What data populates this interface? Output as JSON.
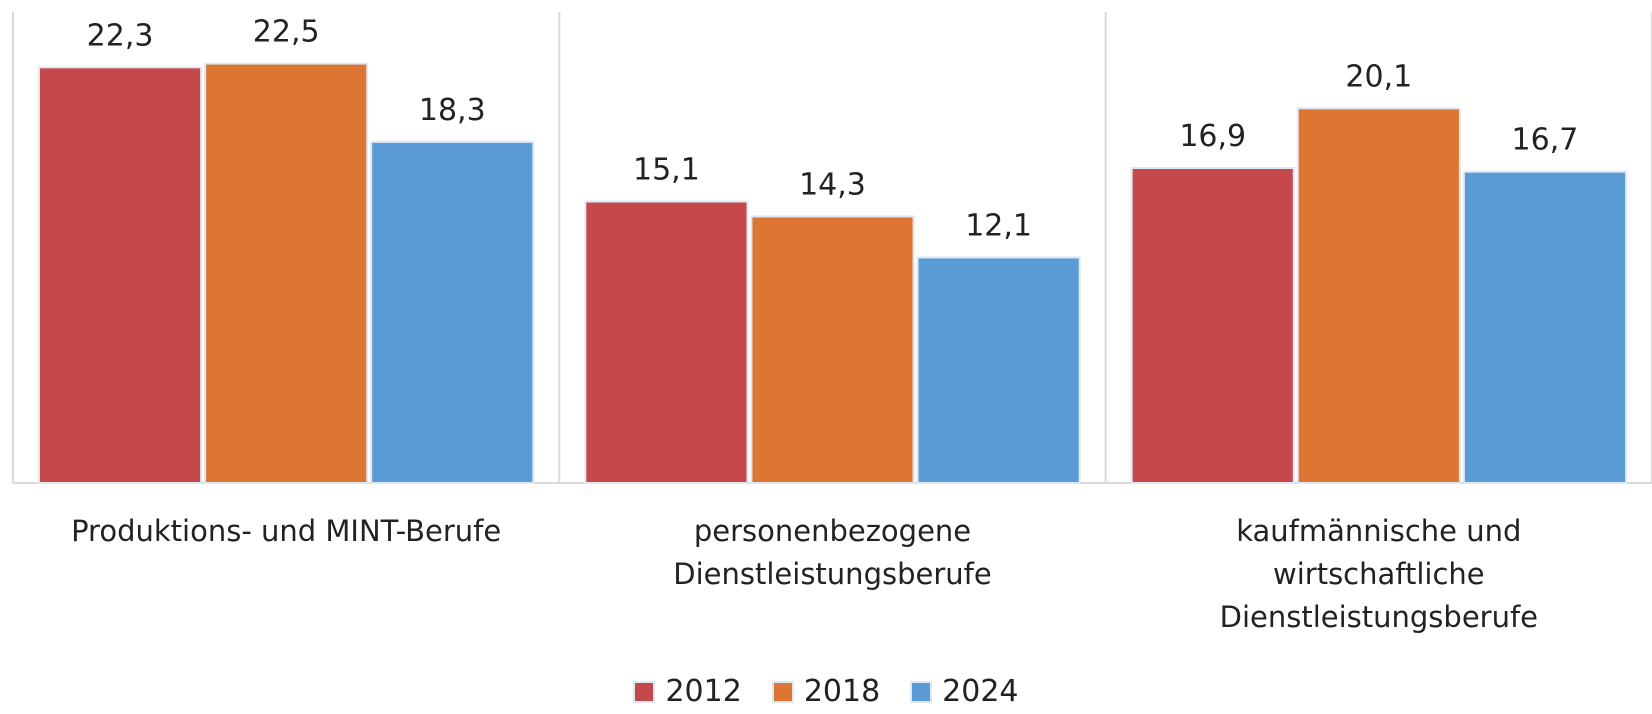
{
  "chart_data": {
    "type": "bar",
    "categories": [
      "Produktions- und MINT-Berufe",
      "personenbezogene Dienstleistungsberufe",
      "kaufmännische und wirtschaftliche Dienstleistungsberufe"
    ],
    "series": [
      {
        "name": "2012",
        "color": "#c5484a",
        "values": [
          22.3,
          15.1,
          16.9
        ],
        "value_labels": [
          "22,3",
          "15,1",
          "16,9"
        ]
      },
      {
        "name": "2018",
        "color": "#de7633",
        "values": [
          22.5,
          14.3,
          20.1
        ],
        "value_labels": [
          "22,5",
          "14,3",
          "20,1"
        ]
      },
      {
        "name": "2024",
        "color": "#5b9bd5",
        "values": [
          18.3,
          12.1,
          16.7
        ],
        "value_labels": [
          "18,3",
          "12,1",
          "16,7"
        ]
      }
    ],
    "ylim": [
      0,
      25
    ],
    "legend": "bottom"
  }
}
